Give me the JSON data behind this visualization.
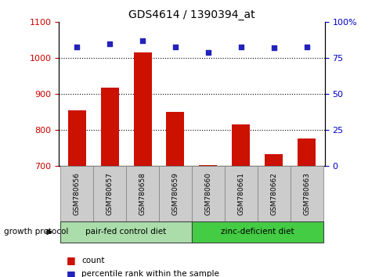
{
  "title": "GDS4614 / 1390394_at",
  "samples": [
    "GSM780656",
    "GSM780657",
    "GSM780658",
    "GSM780659",
    "GSM780660",
    "GSM780661",
    "GSM780662",
    "GSM780663"
  ],
  "counts": [
    855,
    918,
    1015,
    850,
    703,
    815,
    733,
    778
  ],
  "percentile_ranks": [
    83,
    85,
    87,
    83,
    79,
    83,
    82,
    83
  ],
  "groups": [
    {
      "label": "pair-fed control diet",
      "indices": [
        0,
        1,
        2,
        3
      ],
      "color": "#aaddaa"
    },
    {
      "label": "zinc-deficient diet",
      "indices": [
        4,
        5,
        6,
        7
      ],
      "color": "#44cc44"
    }
  ],
  "group_protocol_label": "growth protocol",
  "ylim_left": [
    700,
    1100
  ],
  "ylim_right": [
    0,
    100
  ],
  "yticks_left": [
    700,
    800,
    900,
    1000,
    1100
  ],
  "yticks_right": [
    0,
    25,
    50,
    75,
    100
  ],
  "yright_labels": [
    "0",
    "25",
    "50",
    "75",
    "100%"
  ],
  "grid_values": [
    800,
    900,
    1000
  ],
  "bar_color": "#cc1100",
  "dot_color": "#2222bb",
  "bar_width": 0.55,
  "count_legend": "count",
  "percentile_legend": "percentile rank within the sample",
  "left_tick_color": "#cc0000",
  "right_tick_color": "#0000cc"
}
